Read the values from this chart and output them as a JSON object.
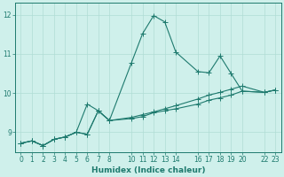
{
  "xlabel": "Humidex (Indice chaleur)",
  "bg_color": "#cff0eb",
  "line_color": "#1e7a6e",
  "grid_color": "#b0ddd5",
  "xlim": [
    -0.5,
    23.5
  ],
  "ylim": [
    8.5,
    12.3
  ],
  "yticks": [
    9,
    10,
    11,
    12
  ],
  "xticks": [
    0,
    1,
    2,
    3,
    4,
    5,
    6,
    7,
    8,
    10,
    11,
    12,
    13,
    14,
    16,
    17,
    18,
    19,
    20,
    22,
    23
  ],
  "line1_x": [
    0,
    1,
    2,
    3,
    4,
    5,
    6,
    7,
    8,
    10,
    11,
    12,
    13,
    14,
    16,
    17,
    18,
    19,
    20,
    22,
    23
  ],
  "line1_y": [
    8.72,
    8.78,
    8.66,
    8.82,
    8.88,
    9.0,
    8.95,
    9.55,
    9.3,
    9.35,
    9.4,
    9.5,
    9.55,
    9.6,
    9.72,
    9.82,
    9.88,
    9.95,
    10.05,
    10.02,
    10.08
  ],
  "line2_x": [
    0,
    1,
    2,
    3,
    4,
    5,
    6,
    7,
    8,
    10,
    11,
    12,
    13,
    14,
    16,
    17,
    18,
    19,
    20,
    22,
    23
  ],
  "line2_y": [
    8.72,
    8.78,
    8.66,
    8.82,
    8.88,
    9.0,
    9.72,
    9.55,
    9.3,
    10.78,
    11.52,
    11.98,
    11.82,
    11.05,
    10.55,
    10.52,
    10.95,
    10.5,
    10.05,
    10.02,
    10.08
  ],
  "line3_x": [
    0,
    1,
    2,
    3,
    4,
    5,
    6,
    7,
    8,
    10,
    11,
    12,
    13,
    14,
    16,
    17,
    18,
    19,
    20,
    22,
    23
  ],
  "line3_y": [
    8.72,
    8.78,
    8.66,
    8.82,
    8.88,
    9.0,
    8.95,
    9.55,
    9.3,
    9.38,
    9.45,
    9.52,
    9.6,
    9.68,
    9.85,
    9.95,
    10.02,
    10.1,
    10.18,
    10.02,
    10.08
  ]
}
